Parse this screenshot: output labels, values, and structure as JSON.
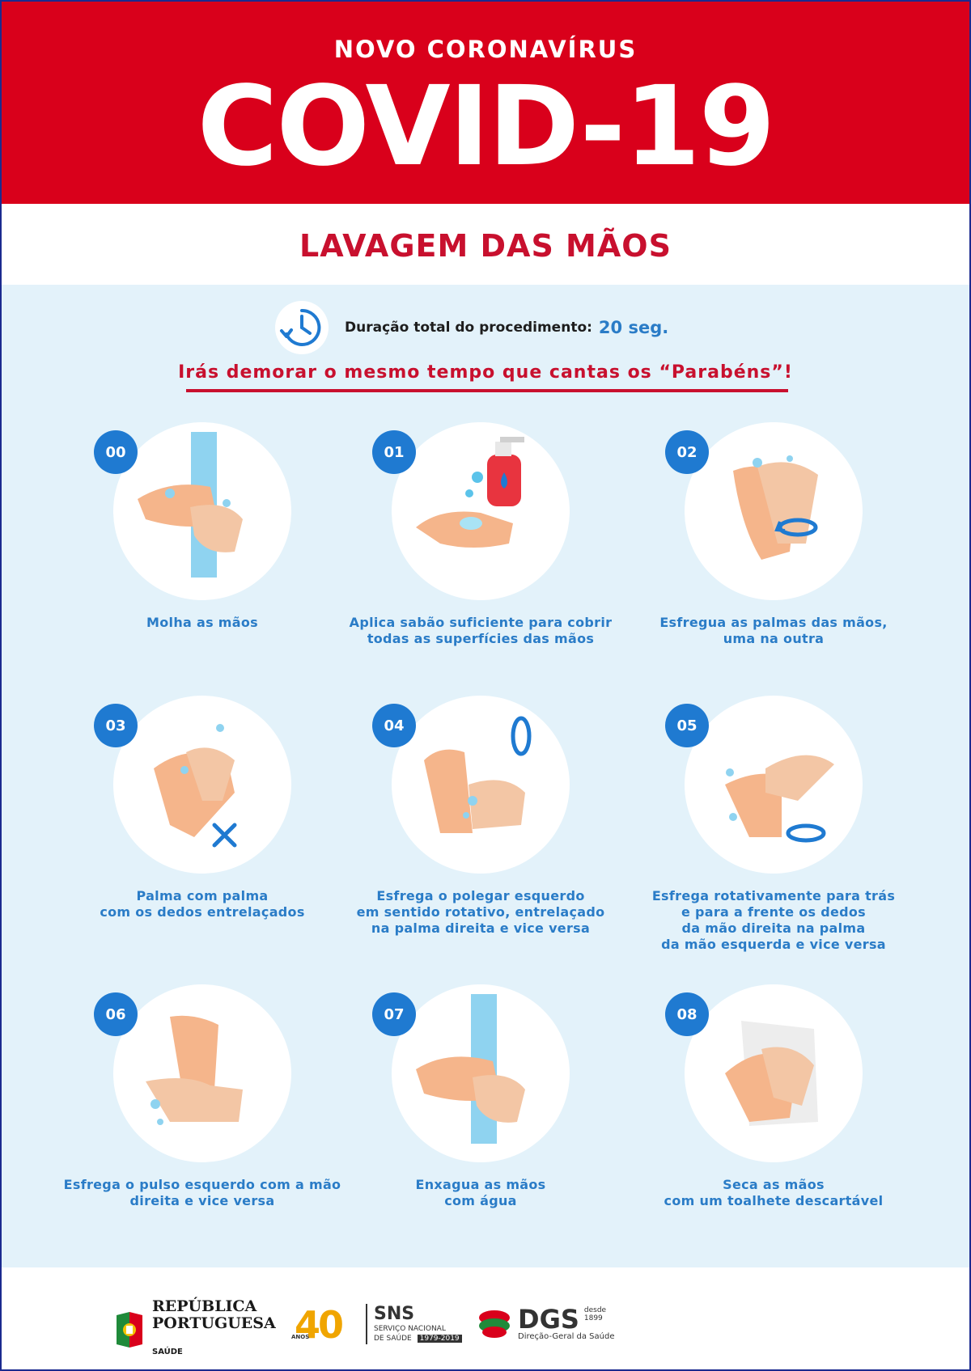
{
  "header": {
    "supertitle": "NOVO CORONAVÍRUS",
    "title": "COVID-19"
  },
  "band": {
    "title": "LAVAGEM DAS MÃOS"
  },
  "duration": {
    "label": "Duração total do procedimento:",
    "value": "20 seg.",
    "icon": "clock-icon"
  },
  "tagline": "Irás demorar o mesmo tempo que cantas os “Parabéns”!",
  "steps": [
    {
      "number": "00",
      "lines": [
        "Molha as mãos"
      ],
      "icon": "wet-hands-icon"
    },
    {
      "number": "01",
      "lines": [
        "Aplica sabão suficiente para cobrir",
        "todas as superfícies das mãos"
      ],
      "icon": "soap-dispenser-icon"
    },
    {
      "number": "02",
      "lines": [
        "Esfregua as palmas das mãos,",
        "uma na outra"
      ],
      "icon": "rub-palms-icon"
    },
    {
      "number": "03",
      "lines": [
        "Palma com palma",
        "com os dedos entrelaçados"
      ],
      "icon": "interlaced-fingers-icon"
    },
    {
      "number": "04",
      "lines": [
        "Esfrega o polegar esquerdo",
        "em sentido rotativo, entrelaçado",
        "na palma direita e vice versa"
      ],
      "icon": "rotate-thumb-icon"
    },
    {
      "number": "05",
      "lines": [
        "Esfrega rotativamente para trás",
        "e para a frente os dedos",
        "da mão direita na palma",
        "da mão esquerda e vice versa"
      ],
      "icon": "fingertips-palm-icon"
    },
    {
      "number": "06",
      "lines": [
        "Esfrega o pulso esquerdo com a mão",
        "direita e vice versa"
      ],
      "icon": "wrist-rub-icon"
    },
    {
      "number": "07",
      "lines": [
        "Enxagua as mãos",
        "com água"
      ],
      "icon": "rinse-hands-icon"
    },
    {
      "number": "08",
      "lines": [
        "Seca as mãos",
        "com um toalhete descartável"
      ],
      "icon": "dry-hands-towel-icon"
    }
  ],
  "footer": {
    "republica": {
      "line1": "REPÚBLICA",
      "line2": "PORTUGUESA",
      "sub": "SAÚDE"
    },
    "anniversary": {
      "number": "40",
      "small": "ANOS"
    },
    "sns": {
      "title": "SNS",
      "line1": "SERVIÇO NACIONAL",
      "line2": "DE SAÚDE",
      "years": "1979-2019"
    },
    "dgs": {
      "title": "DGS",
      "since_label": "desde",
      "since_year": "1899",
      "sub": "Direção-Geral da Saúde"
    }
  },
  "colors": {
    "red": "#d9001b",
    "blue": "#2a7cc7",
    "light_blue": "#e3f2fa",
    "badge_blue": "#1f7ad1"
  }
}
